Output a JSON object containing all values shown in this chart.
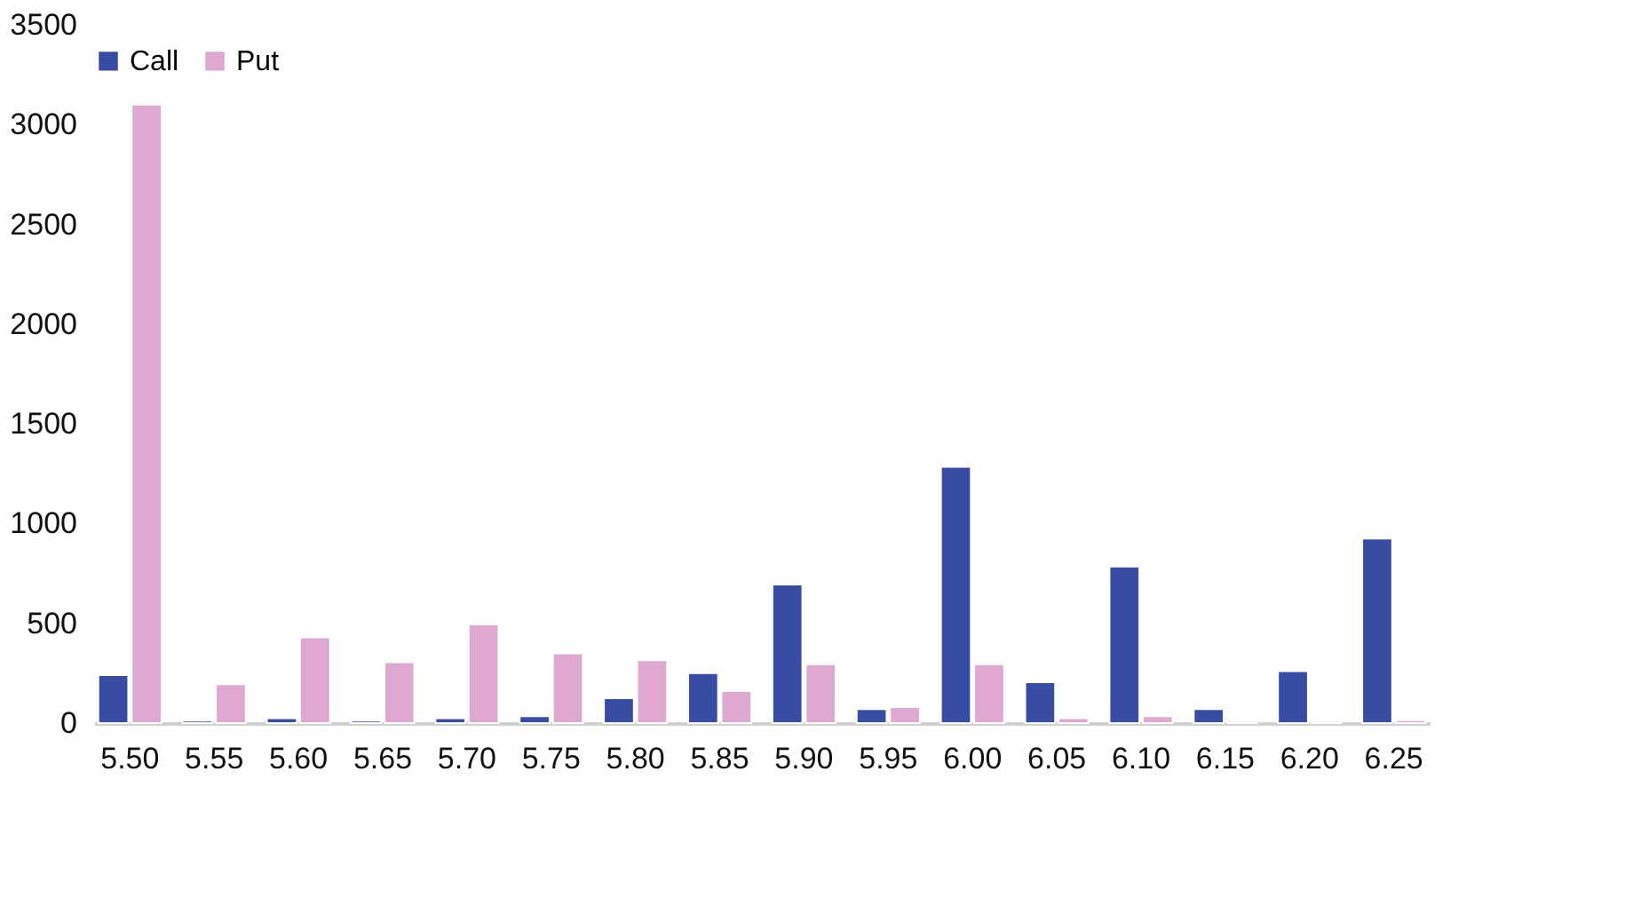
{
  "chart_data": {
    "type": "bar",
    "categories": [
      "5.50",
      "5.55",
      "5.60",
      "5.65",
      "5.70",
      "5.75",
      "5.80",
      "5.85",
      "5.90",
      "5.95",
      "6.00",
      "6.05",
      "6.10",
      "6.15",
      "6.20",
      "6.25"
    ],
    "series": [
      {
        "name": "Call",
        "color": "#384ca4",
        "values": [
          240,
          12,
          25,
          12,
          25,
          35,
          125,
          250,
          695,
          70,
          1285,
          205,
          785,
          70,
          260,
          925
        ]
      },
      {
        "name": "Put",
        "color": "#dea8d0",
        "values": [
          3100,
          195,
          430,
          305,
          495,
          350,
          315,
          160,
          295,
          80,
          295,
          25,
          35,
          10,
          10,
          15
        ]
      }
    ],
    "ylim": [
      0,
      3500
    ],
    "yticks": [
      0,
      500,
      1000,
      1500,
      2000,
      2500,
      3000,
      3500
    ],
    "grid": false,
    "legend": "top"
  }
}
